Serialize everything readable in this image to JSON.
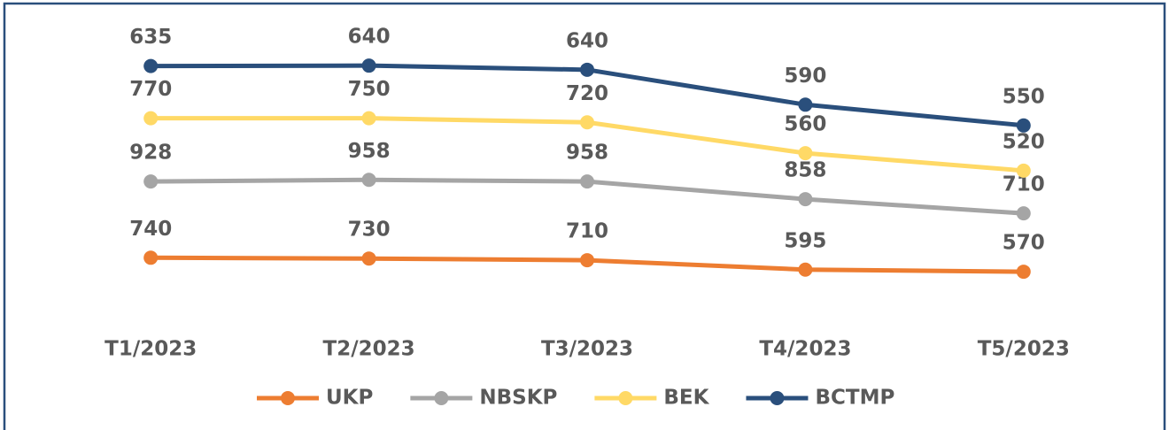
{
  "chart_data": {
    "type": "line",
    "stacked": true,
    "categories": [
      "T1/2023",
      "T2/2023",
      "T3/2023",
      "T4/2023",
      "T5/2023"
    ],
    "series": [
      {
        "name": "UKP",
        "color": "#ed7d31",
        "values": [
          740,
          730,
          710,
          595,
          570
        ]
      },
      {
        "name": "NBSKP",
        "color": "#a5a5a5",
        "values": [
          928,
          958,
          958,
          858,
          710
        ]
      },
      {
        "name": "BEK",
        "color": "#ffd966",
        "values": [
          770,
          750,
          720,
          560,
          520
        ]
      },
      {
        "name": "BCTMP",
        "color": "#2a4f7c",
        "values": [
          635,
          640,
          640,
          590,
          550
        ]
      }
    ],
    "ylim": [
      0,
      3500
    ],
    "legend": "bottom"
  }
}
